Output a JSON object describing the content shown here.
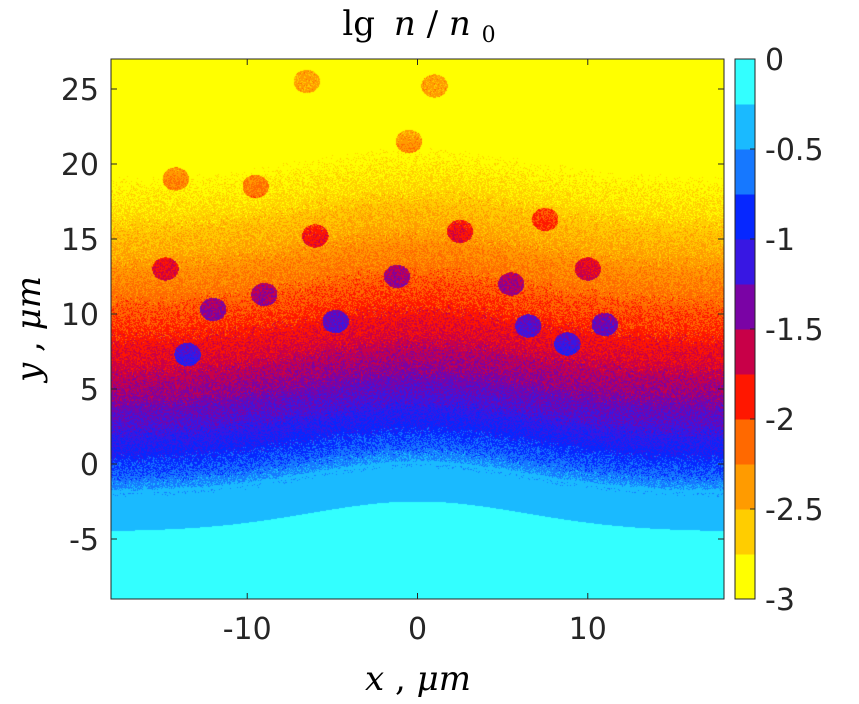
{
  "chart_data": {
    "type": "heatmap",
    "title_parts": [
      "lg",
      "n",
      "/",
      "n",
      "0"
    ],
    "xlabel_parts": [
      "x",
      ", ",
      "μm"
    ],
    "ylabel_parts": [
      "y",
      ", ",
      "μm"
    ],
    "xlim": [
      -18,
      18
    ],
    "ylim": [
      -9,
      27
    ],
    "xticks": [
      -10,
      0,
      10
    ],
    "xtick_labels": [
      "-10",
      "0",
      "10"
    ],
    "yticks": [
      -5,
      0,
      5,
      10,
      15,
      20,
      25
    ],
    "ytick_labels": [
      "-5",
      "0",
      "5",
      "10",
      "15",
      "20",
      "25"
    ],
    "colorbar": {
      "clim": [
        -3,
        0
      ],
      "ticks": [
        0,
        -0.5,
        -1,
        -1.5,
        -2,
        -2.5,
        -3
      ],
      "tick_labels": [
        "0",
        "-0.5",
        "-1",
        "-1.5",
        "-2",
        "-2.5",
        "-3"
      ],
      "levels": 12,
      "colors": [
        "#ffff00",
        "#ffd500",
        "#ffaa00",
        "#ff8000",
        "#ff5500",
        "#ff0000",
        "#c2004f",
        "#7f00a0",
        "#4d1fd8",
        "#0000ff",
        "#0e55ff",
        "#1a8cff",
        "#1ac4ff",
        "#33ffff"
      ]
    },
    "field": {
      "description_units": "log10 density, data units",
      "baseline_center": -1.5,
      "baseline_wave_amplitude": 2.0,
      "bright_region_level": 0.0,
      "top_level": -3.0
    },
    "bubbles": [
      {
        "x": -6.5,
        "y": 25.5,
        "v": -1.9
      },
      {
        "x": 1.0,
        "y": 25.2,
        "v": -1.9
      },
      {
        "x": -0.5,
        "y": 21.5,
        "v": -1.9
      },
      {
        "x": -14.2,
        "y": 19.0,
        "v": -1.85
      },
      {
        "x": -9.5,
        "y": 18.5,
        "v": -1.6
      },
      {
        "x": 7.5,
        "y": 16.3,
        "v": -1.6
      },
      {
        "x": -6.0,
        "y": 15.2,
        "v": -1.35
      },
      {
        "x": 2.5,
        "y": 15.5,
        "v": -1.35
      },
      {
        "x": -14.8,
        "y": 13.0,
        "v": -1.6
      },
      {
        "x": 10.0,
        "y": 13.0,
        "v": -1.6
      },
      {
        "x": -1.2,
        "y": 12.5,
        "v": -1.2
      },
      {
        "x": 5.5,
        "y": 12.0,
        "v": -1.2
      },
      {
        "x": -9.0,
        "y": 11.3,
        "v": -1.25
      },
      {
        "x": -12.0,
        "y": 10.3,
        "v": -1.1
      },
      {
        "x": -4.8,
        "y": 9.5,
        "v": -1.05
      },
      {
        "x": 6.5,
        "y": 9.2,
        "v": -1.0
      },
      {
        "x": 11.0,
        "y": 9.3,
        "v": -1.1
      },
      {
        "x": -13.5,
        "y": 7.3,
        "v": -0.95
      },
      {
        "x": 8.8,
        "y": 8.0,
        "v": -0.95
      }
    ]
  }
}
